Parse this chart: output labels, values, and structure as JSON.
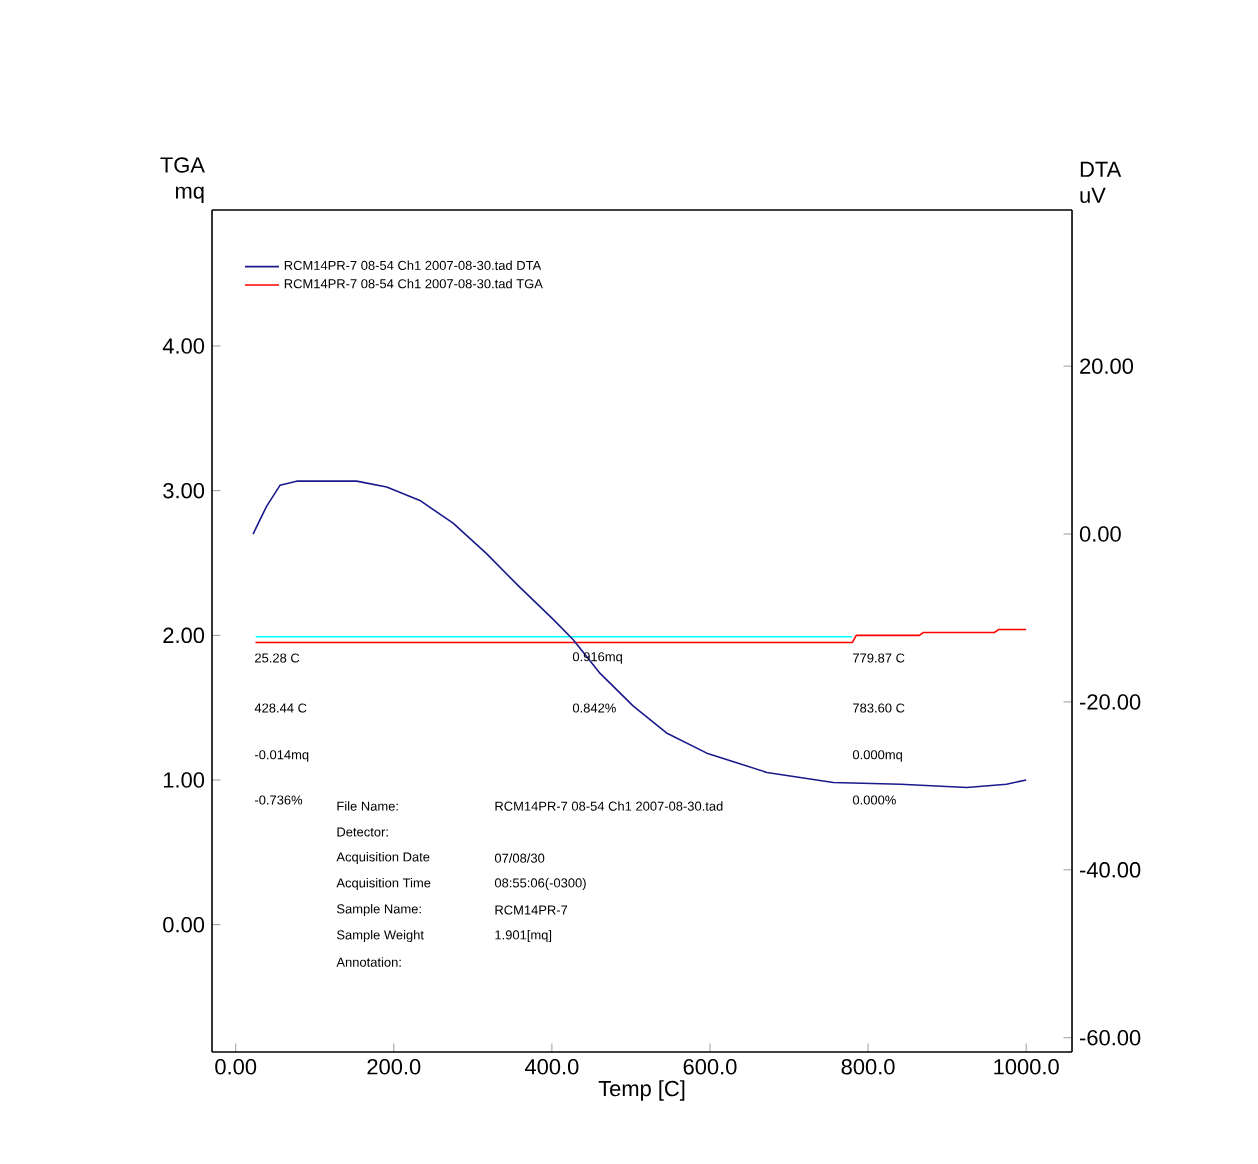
{
  "chart_data": {
    "type": "line",
    "xlabel": "Temp [C]",
    "ylabel": "TGA mq",
    "y2label": "DTA uV",
    "xlim": [
      -30,
      1058
    ],
    "ylim": [
      -0.88,
      4.94
    ],
    "y2lim": [
      -61.7,
      38.6
    ],
    "xticks": [
      {
        "value": 0,
        "label": "0.00"
      },
      {
        "value": 200,
        "label": "200.0"
      },
      {
        "value": 400,
        "label": "400.0"
      },
      {
        "value": 600,
        "label": "600.0"
      },
      {
        "value": 800,
        "label": "800.0"
      },
      {
        "value": 1000,
        "label": "1000.0"
      }
    ],
    "yticks": [
      {
        "value": 0,
        "label": "0.00"
      },
      {
        "value": 1,
        "label": "1.00"
      },
      {
        "value": 2,
        "label": "2.00"
      },
      {
        "value": 3,
        "label": "3.00"
      },
      {
        "value": 4,
        "label": "4.00"
      }
    ],
    "y2ticks": [
      {
        "value": -60,
        "label": "-60.00"
      },
      {
        "value": -40,
        "label": "-40.00"
      },
      {
        "value": -20,
        "label": "-20.00"
      },
      {
        "value": 0,
        "label": "0.00"
      },
      {
        "value": 20,
        "label": "20.00"
      }
    ],
    "legend": "top left",
    "series": [
      {
        "name": "RCM14PR-7 08-54 Ch1 2007-08-30.tad  DTA",
        "color": "#1a1a8c",
        "axis": "y2",
        "x": [
          22,
          39,
          56,
          77,
          153,
          191,
          233,
          275,
          317,
          359,
          402,
          427,
          461,
          503,
          545,
          596,
          672,
          756,
          841,
          925,
          975,
          1000
        ],
        "values": [
          0,
          3.3,
          5.8,
          6.3,
          6.3,
          5.6,
          4.0,
          1.3,
          -2.3,
          -6.3,
          -10.2,
          -12.6,
          -16.6,
          -20.5,
          -23.7,
          -26.1,
          -28.4,
          -29.6,
          -29.8,
          -30.2,
          -29.8,
          -29.3
        ]
      },
      {
        "name": "RCM14PR-7 08-54 Ch1 2007-08-30.tad  TGA",
        "color": "#ff0000",
        "x": [
          25,
          780,
          785,
          865,
          870,
          960,
          965,
          1000
        ],
        "values": [
          1.95,
          1.95,
          2.0,
          2.0,
          2.02,
          2.02,
          2.04,
          2.04
        ]
      },
      {
        "color": "#00ffff",
        "x": [
          25.28,
          779.87
        ],
        "values": [
          1.99,
          1.99
        ]
      }
    ],
    "annotations": [
      "25.28 C",
      "428.44 C",
      "-0.014mq",
      "-0.736%",
      "0.916mq",
      "0.842%",
      "779.87 C",
      "783.60 C",
      "0.000mq",
      "0.000%",
      "File Name:",
      "RCM14PR-7 08-54 Ch1 2007-08-30.tad",
      "Detector:",
      "Acquisition Date",
      "07/08/30",
      "Acquisition Time",
      "08:55:06(-0300)",
      "Sample Name:",
      "RCM14PR-7",
      "Sample Weight",
      "1.901[mq]",
      "Annotation:"
    ]
  }
}
